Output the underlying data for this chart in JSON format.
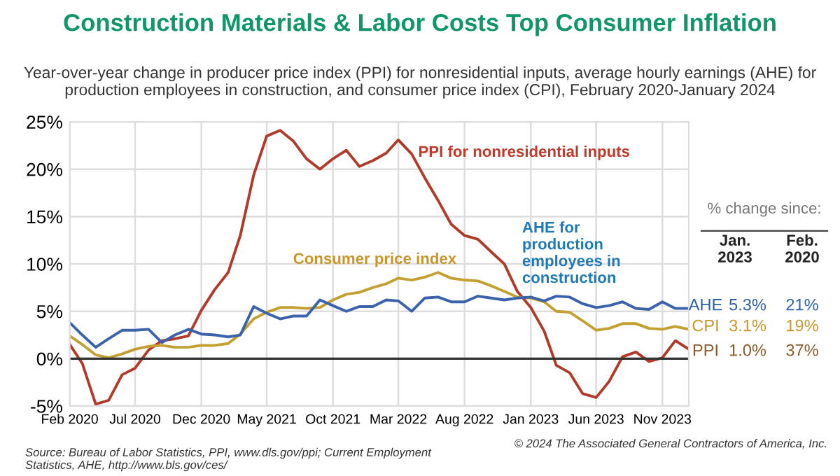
{
  "chart_data": {
    "type": "line",
    "title": "Construction Materials & Labor Costs Top Consumer Inflation",
    "subtitle": "Year-over-year change in producer price index (PPI) for nonresidential inputs, average hourly earnings (AHE) for production employees in construction, and consumer price index (CPI), February 2020-January 2024",
    "x": [
      "2020-02",
      "2020-03",
      "2020-04",
      "2020-05",
      "2020-06",
      "2020-07",
      "2020-08",
      "2020-09",
      "2020-10",
      "2020-11",
      "2020-12",
      "2021-01",
      "2021-02",
      "2021-03",
      "2021-04",
      "2021-05",
      "2021-06",
      "2021-07",
      "2021-08",
      "2021-09",
      "2021-10",
      "2021-11",
      "2021-12",
      "2022-01",
      "2022-02",
      "2022-03",
      "2022-04",
      "2022-05",
      "2022-06",
      "2022-07",
      "2022-08",
      "2022-09",
      "2022-10",
      "2022-11",
      "2022-12",
      "2023-01",
      "2023-02",
      "2023-03",
      "2023-04",
      "2023-05",
      "2023-06",
      "2023-07",
      "2023-08",
      "2023-09",
      "2023-10",
      "2023-11",
      "2023-12",
      "2024-01"
    ],
    "series": [
      {
        "name": "PPI for nonresidential inputs",
        "color": "#b23a2a",
        "values": [
          1.5,
          -0.5,
          -4.8,
          -4.4,
          -1.7,
          -1.0,
          0.9,
          1.9,
          2.1,
          2.4,
          5.1,
          7.3,
          9.1,
          13.0,
          19.4,
          23.5,
          24.1,
          23.0,
          21.1,
          20.0,
          21.1,
          22.0,
          20.3,
          20.9,
          21.7,
          23.1,
          21.6,
          19.1,
          16.7,
          14.2,
          13.0,
          12.6,
          11.3,
          10.0,
          7.1,
          5.4,
          2.9,
          -0.7,
          -1.5,
          -3.7,
          -4.1,
          -2.4,
          0.2,
          0.7,
          -0.3,
          0.1,
          1.9,
          1.0
        ]
      },
      {
        "name": "Consumer price index",
        "color": "#c2a031",
        "values": [
          2.4,
          1.5,
          0.4,
          0.1,
          0.5,
          1.0,
          1.3,
          1.4,
          1.2,
          1.2,
          1.4,
          1.4,
          1.6,
          2.6,
          4.2,
          4.9,
          5.4,
          5.4,
          5.3,
          5.4,
          6.2,
          6.8,
          7.0,
          7.5,
          7.9,
          8.5,
          8.3,
          8.6,
          9.1,
          8.5,
          8.3,
          8.2,
          7.7,
          7.1,
          6.5,
          6.4,
          6.0,
          5.0,
          4.9,
          4.0,
          3.0,
          3.2,
          3.7,
          3.7,
          3.2,
          3.1,
          3.4,
          3.1
        ]
      },
      {
        "name": "AHE for production employees in construction",
        "color": "#3b62aa",
        "values": [
          3.8,
          2.5,
          1.2,
          2.1,
          3.0,
          3.0,
          3.1,
          1.7,
          2.5,
          3.1,
          2.6,
          2.5,
          2.3,
          2.5,
          5.5,
          4.8,
          4.2,
          4.5,
          4.5,
          6.2,
          5.6,
          5.0,
          5.5,
          5.5,
          6.2,
          6.1,
          5.0,
          6.4,
          6.5,
          6.0,
          6.0,
          6.6,
          6.4,
          6.2,
          6.4,
          6.5,
          6.1,
          6.6,
          6.5,
          5.8,
          5.4,
          5.6,
          6.0,
          5.3,
          5.2,
          6.0,
          5.3,
          5.3
        ]
      }
    ],
    "xlim": [
      "2020-02",
      "2024-01"
    ],
    "xticks": [
      {
        "value": "2020-02",
        "label": "Feb 2020"
      },
      {
        "value": "2020-07",
        "label": "Jul 2020"
      },
      {
        "value": "2020-12",
        "label": "Dec 2020"
      },
      {
        "value": "2021-05",
        "label": "May 2021"
      },
      {
        "value": "2021-10",
        "label": "Oct 2021"
      },
      {
        "value": "2022-03",
        "label": "Mar 2022"
      },
      {
        "value": "2022-08",
        "label": "Aug 2022"
      },
      {
        "value": "2023-01",
        "label": "Jan 2023"
      },
      {
        "value": "2023-06",
        "label": "Jun 2023"
      },
      {
        "value": "2023-11",
        "label": "Nov 2023"
      }
    ],
    "ylim": [
      -5,
      25
    ],
    "yticks": [
      {
        "value": -5,
        "label": "-5%"
      },
      {
        "value": 0,
        "label": "0%"
      },
      {
        "value": 5,
        "label": "5%"
      },
      {
        "value": 10,
        "label": "10%"
      },
      {
        "value": 15,
        "label": "15%"
      },
      {
        "value": 20,
        "label": "20%"
      },
      {
        "value": 25,
        "label": "25%"
      }
    ],
    "grid": true,
    "ref_lines": [
      {
        "axis": "y",
        "value": 0,
        "color": "#333333"
      }
    ],
    "annotations": [
      "% change since:",
      "Jan. 2023",
      "Feb. 2020",
      "PPI",
      "1.0%",
      "37%",
      "CPI",
      "3.1%",
      "19%",
      "AHE",
      "5.3%",
      "21%",
      "Source: Bureau of Labor Statistics, PPI, www.dls.gov/ppi; Current Employment Statistics, AHE, http://www.bls.gov/ces/",
      "© 2024 The Associated General Contractors of America, Inc."
    ]
  }
}
